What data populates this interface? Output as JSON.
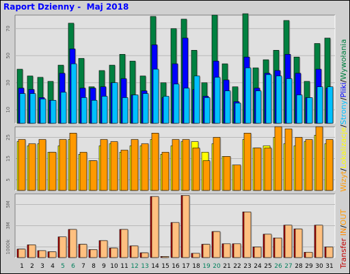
{
  "title": "Raport Dzienny -  Maj 2018",
  "colors": {
    "background": "#d0d0d0",
    "panel": "#e0e0e0",
    "wizyty": "#ff9900",
    "lokalizacje": "#ffff00",
    "strony": "#00c0ff",
    "pliki": "#0000ff",
    "wywolania": "#008040",
    "transfer": "#c00000",
    "in": "#ff8800",
    "out": "#ffc080",
    "day_normal": "#000000",
    "day_weekend": "#00805c",
    "title": "#0000ff"
  },
  "legend": {
    "hits_group": [
      {
        "text": "Strony",
        "color": "#00c0ff"
      },
      {
        "text": "/",
        "color": "#000000"
      },
      {
        "text": "Pliki",
        "color": "#0000ff"
      },
      {
        "text": "/",
        "color": "#000000"
      },
      {
        "text": "Wywołania",
        "color": "#008040"
      }
    ],
    "visits_group": [
      {
        "text": "Wizyt",
        "color": "#ff9900"
      },
      {
        "text": "/",
        "color": "#000000"
      },
      {
        "text": "Lokalizacje",
        "color": "#ffff00"
      },
      {
        "text": "/",
        "color": "#000000"
      }
    ],
    "transfer_group": [
      {
        "text": "Transfer",
        "color": "#c00000"
      },
      {
        "text": "  IN",
        "color": "#ff8800"
      },
      {
        "text": "/",
        "color": "#000000"
      },
      {
        "text": "OUT",
        "color": "#ff9900"
      }
    ]
  },
  "chart_data": {
    "type": "bar",
    "categories": [
      "1",
      "2",
      "3",
      "4",
      "5",
      "6",
      "7",
      "8",
      "9",
      "10",
      "11",
      "12",
      "13",
      "14",
      "15",
      "16",
      "17",
      "18",
      "19",
      "20",
      "21",
      "22",
      "23",
      "24",
      "25",
      "26",
      "27",
      "28",
      "29",
      "30",
      "31"
    ],
    "weekend_days": [
      "5",
      "6",
      "12",
      "13",
      "19",
      "20",
      "26",
      "27"
    ],
    "panels": [
      {
        "name": "hits",
        "ylim": [
          0,
          80
        ],
        "yticks": [
          "10",
          "30",
          "50",
          "70"
        ],
        "ytick_values": [
          10,
          30,
          50,
          70
        ],
        "series": [
          {
            "name": "Wywołania",
            "values": [
              40,
              35,
              34,
              31,
              43,
              74,
              48,
              27,
              39,
              43,
              51,
              46,
              35,
              79,
              30,
              70,
              77,
              54,
              30,
              80,
              44,
              27,
              81,
              41,
              47,
              54,
              76,
              49,
              31,
              59,
              63
            ]
          },
          {
            "name": "Pliki",
            "values": [
              26,
              25,
              19,
              17,
              37,
              55,
              26,
              26,
              27,
              30,
              33,
              21,
              24,
              58,
              19,
              44,
              63,
              25,
              20,
              46,
              32,
              16,
              49,
              26,
              37,
              39,
              51,
              37,
              19,
              40,
              26
            ]
          },
          {
            "name": "Strony",
            "values": [
              22,
              22,
              18,
              17,
              23,
              44,
              19,
              17,
              20,
              30,
              19,
              21,
              22,
              40,
              20,
              29,
              26,
              35,
              19,
              34,
              24,
              15,
              41,
              24,
              36,
              35,
              33,
              21,
              19,
              27,
              27
            ]
          }
        ]
      },
      {
        "name": "visits",
        "ylim": [
          0,
          30
        ],
        "yticks": [
          "5",
          "15",
          "25"
        ],
        "ytick_values": [
          5,
          15,
          25
        ],
        "series": [
          {
            "name": "Lokalizacje",
            "values": [
              23,
              21,
              22,
              18,
              21,
              24,
              17,
              14,
              21,
              22,
              18,
              21,
              21,
              24,
              17,
              21,
              23,
              23,
              18,
              22,
              16,
              12,
              24,
              20,
              21,
              25,
              22,
              21,
              23,
              26,
              22
            ]
          },
          {
            "name": "Wizyty",
            "values": [
              24,
              22,
              24,
              18,
              24,
              27,
              18,
              14,
              24,
              23,
              19,
              24,
              22,
              27,
              18,
              24,
              24,
              20,
              14,
              25,
              16,
              12,
              27,
              20,
              20,
              30,
              29,
              25,
              24,
              30,
              24
            ]
          }
        ]
      },
      {
        "name": "transfer",
        "ylim": [
          0,
          6000
        ],
        "yticks": [
          "1000k",
          "3M",
          "5M"
        ],
        "ytick_values": [
          1000,
          3000,
          5000
        ],
        "series": [
          {
            "name": "IN",
            "values": [
              800,
              1200,
              650,
              550,
              1950,
              2650,
              1250,
              750,
              1600,
              900,
              2650,
              1100,
              450,
              5750,
              100,
              3300,
              5850,
              400,
              1250,
              2450,
              1300,
              1300,
              4300,
              1000,
              2200,
              1850,
              3050,
              2700,
              500,
              3050,
              1000
            ]
          },
          {
            "name": "OUT",
            "values": [
              800,
              1200,
              650,
              550,
              1950,
              2650,
              1250,
              750,
              1600,
              900,
              2650,
              1100,
              450,
              5750,
              100,
              3300,
              5850,
              400,
              1250,
              2450,
              1300,
              1300,
              4300,
              1000,
              2200,
              1850,
              3050,
              2700,
              500,
              3050,
              1000
            ]
          }
        ]
      }
    ]
  }
}
